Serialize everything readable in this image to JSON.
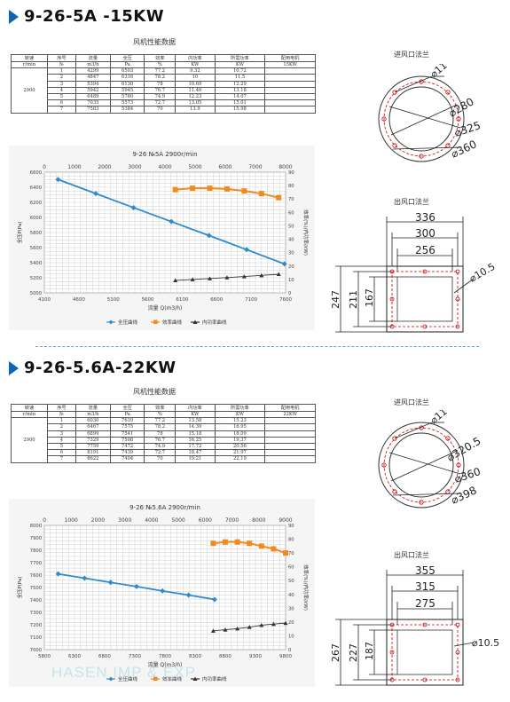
{
  "sections": [
    {
      "model": "9-26-5A -15KW",
      "perf_title": "风机性能数据",
      "table": {
        "headers": [
          [
            "转速",
            "序号",
            "流量",
            "全压",
            "效率",
            "内功率",
            "所需功率",
            "配用电机"
          ],
          [
            "r/min",
            "№",
            "m3/h",
            "Pa",
            "%",
            "KW",
            "KW",
            "15KW"
          ]
        ],
        "speed": "2900",
        "rows": [
          [
            "1",
            "4299",
            "6503",
            "77.2",
            "9.32",
            "10.72"
          ],
          [
            "2",
            "4847",
            "6316",
            "78.2",
            "10",
            "11.5"
          ],
          [
            "3",
            "5394",
            "6130",
            "78",
            "10.69",
            "12.29"
          ],
          [
            "4",
            "5942",
            "5945",
            "76.7",
            "11.46",
            "13.18"
          ],
          [
            "5",
            "6489",
            "5760",
            "74.9",
            "12.23",
            "14.07"
          ],
          [
            "6",
            "7035",
            "5573",
            "72.7",
            "13.05",
            "15.01"
          ],
          [
            "7",
            "7583",
            "5384",
            "70",
            "13.9",
            "15.98"
          ]
        ]
      },
      "chart_data": {
        "type": "line",
        "title": "9-26 №5A 2900r/min",
        "xlabel": "流量 Q(m3/h)",
        "ylabel": "全压P(Pa)",
        "ylabel_right": "效率(%)/内功率(kW)",
        "x_bottom_ticks": [
          "4100",
          "4600",
          "5100",
          "5600",
          "6100",
          "6600",
          "7100",
          "7600"
        ],
        "x_top_ticks": [
          "0",
          "1000",
          "2000",
          "3000",
          "4000",
          "5000",
          "6000",
          "7000",
          "8000"
        ],
        "y_left_ticks": [
          "5000",
          "5200",
          "5400",
          "5600",
          "5800",
          "6000",
          "6200",
          "6400",
          "6600"
        ],
        "y_right_ticks": [
          "0",
          "10",
          "20",
          "30",
          "40",
          "50",
          "60",
          "70",
          "80",
          "90"
        ],
        "xlim": [
          4100,
          7600
        ],
        "ylim": [
          5000,
          6600
        ],
        "series": [
          {
            "name": "全压曲线",
            "color": "#2e8bd0",
            "x": [
              4299,
              4847,
              5394,
              5942,
              6489,
              7035,
              7583
            ],
            "y": [
              6503,
              6316,
              6130,
              5945,
              5760,
              5573,
              5384
            ],
            "axis": "left"
          },
          {
            "name": "效率曲线",
            "color": "#f28a1e",
            "x": [
              6000,
              6250,
              6500,
              6750,
              7000,
              7250,
              7500
            ],
            "y": [
              77,
              78,
              78,
              77.5,
              76,
              74,
              71
            ],
            "axis": "right"
          },
          {
            "name": "内功率曲线",
            "color": "#333333",
            "x": [
              6000,
              6250,
              6500,
              6750,
              7000,
              7250,
              7500
            ],
            "y": [
              9.3,
              10,
              10.7,
              11.4,
              12.2,
              13,
              13.9
            ],
            "axis": "right"
          }
        ]
      },
      "inlet": {
        "label": "进风口法兰",
        "dims": [
          "11",
          "280",
          "325",
          "360"
        ]
      },
      "outlet": {
        "label": "出风口法兰",
        "dims": [
          "336",
          "300",
          "256",
          "247",
          "211",
          "167",
          "10.5"
        ]
      }
    },
    {
      "model": "9-26-5.6A-22KW",
      "perf_title": "风机性能数据",
      "table": {
        "headers": [
          [
            "转速",
            "序号",
            "流量",
            "全压",
            "效率",
            "内功率",
            "所需功率",
            "配用电机"
          ],
          [
            "r/min",
            "№",
            "m3/h",
            "Pa",
            "%",
            "KW",
            "KW",
            "22KW"
          ]
        ],
        "speed": "2900",
        "rows": [
          [
            "1",
            "6030",
            "7610",
            "77.2",
            "13.58",
            "15.23"
          ],
          [
            "2",
            "6467",
            "7575",
            "78.2",
            "14.39",
            "16.95"
          ],
          [
            "3",
            "6899",
            "7541",
            "78",
            "15.18",
            "18.09"
          ],
          [
            "4",
            "7329",
            "7508",
            "76.7",
            "16.25",
            "19.37"
          ],
          [
            "5",
            "7759",
            "7472",
            "74.9",
            "17.72",
            "20.56"
          ],
          [
            "6",
            "8191",
            "7439",
            "72.7",
            "18.47",
            "21.97"
          ],
          [
            "7",
            "8622",
            "7404",
            "70",
            "19.21",
            "22.19"
          ]
        ]
      },
      "chart_data": {
        "type": "line",
        "title": "9-26 №5.6A 2900r/min",
        "xlabel": "流量 Q(m3/h)",
        "ylabel": "全压P(Pa)",
        "ylabel_right": "效率(%)/内功率(kW)",
        "x_bottom_ticks": [
          "5800",
          "6300",
          "6800",
          "7300",
          "7800",
          "8300",
          "8800",
          "9300",
          "9800"
        ],
        "x_top_ticks": [
          "0",
          "1000",
          "2000",
          "3000",
          "4000",
          "5000",
          "6000",
          "7000",
          "8000",
          "9000"
        ],
        "y_left_ticks": [
          "7000",
          "7100",
          "7200",
          "7300",
          "7400",
          "7500",
          "7600",
          "7700",
          "7800",
          "7900",
          "8000"
        ],
        "y_right_ticks": [
          "0",
          "10",
          "20",
          "30",
          "40",
          "50",
          "60",
          "70",
          "80",
          "90"
        ],
        "xlim": [
          5800,
          9800
        ],
        "ylim": [
          7000,
          8000
        ],
        "series": [
          {
            "name": "全压曲线",
            "color": "#2e8bd0",
            "x": [
              6030,
              6467,
              6899,
              7329,
              7759,
              8191,
              8622
            ],
            "y": [
              7610,
              7575,
              7541,
              7508,
              7472,
              7439,
              7404
            ],
            "axis": "left"
          },
          {
            "name": "效率曲线",
            "color": "#f28a1e",
            "x": [
              8600,
              8800,
              9000,
              9200,
              9400,
              9600,
              9800
            ],
            "y": [
              77,
              78,
              78,
              77,
              75,
              73,
              70
            ],
            "axis": "right"
          },
          {
            "name": "内功率曲线",
            "color": "#333333",
            "x": [
              8600,
              8800,
              9000,
              9200,
              9400,
              9600,
              9800
            ],
            "y": [
              13.6,
              14.4,
              15.2,
              16.3,
              17.7,
              18.5,
              19.2
            ],
            "axis": "right"
          }
        ]
      },
      "inlet": {
        "label": "进风口法兰",
        "dims": [
          "11",
          "320.5",
          "360",
          "398"
        ]
      },
      "outlet": {
        "label": "出风口法兰",
        "dims": [
          "355",
          "315",
          "275",
          "267",
          "227",
          "187",
          "10.5"
        ]
      }
    }
  ],
  "watermark": "HASEN IMP & EXP"
}
